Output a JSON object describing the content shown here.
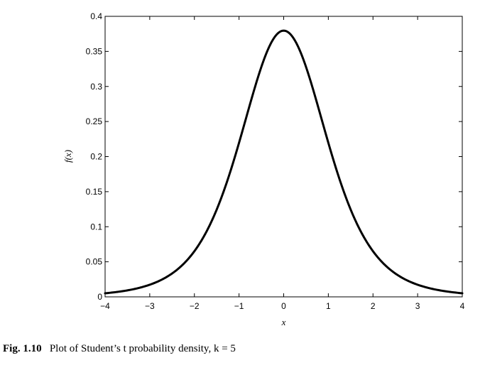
{
  "caption": {
    "figure_number": "Fig. 1.10",
    "text": "Plot of Student’s t probability density, k = 5"
  },
  "chart_data": {
    "type": "line",
    "xlabel": "x",
    "ylabel": "f(x)",
    "xlim": [
      -4,
      4
    ],
    "ylim": [
      0,
      0.4
    ],
    "xticks": [
      -4,
      -3,
      -2,
      -1,
      0,
      1,
      2,
      3,
      4
    ],
    "xtick_labels": [
      "−4",
      "−3",
      "−2",
      "−1",
      "0",
      "1",
      "2",
      "3",
      "4"
    ],
    "yticks": [
      0,
      0.05,
      0.1,
      0.15,
      0.2,
      0.25,
      0.3,
      0.35,
      0.4
    ],
    "ytick_labels": [
      "0",
      "0.05",
      "0.1",
      "0.15",
      "0.2",
      "0.25",
      "0.3",
      "0.35",
      "0.4"
    ],
    "grid": false,
    "series": [
      {
        "x": [
          -4,
          -3.5,
          -3,
          -2.5,
          -2,
          -1.75,
          -1.5,
          -1.25,
          -1,
          -0.75,
          -0.5,
          -0.25,
          0,
          0.25,
          0.5,
          0.75,
          1,
          1.25,
          1.5,
          1.75,
          2,
          2.5,
          3,
          3.5,
          4
        ],
        "y": [
          0.0051,
          0.0087,
          0.0173,
          0.0353,
          0.0651,
          0.0878,
          0.1245,
          0.1753,
          0.2197,
          0.2795,
          0.3279,
          0.3654,
          0.3796,
          0.3654,
          0.3279,
          0.2795,
          0.2197,
          0.1753,
          0.1245,
          0.0878,
          0.0651,
          0.0353,
          0.0173,
          0.0087,
          0.0051
        ],
        "color": "#000000"
      }
    ]
  }
}
